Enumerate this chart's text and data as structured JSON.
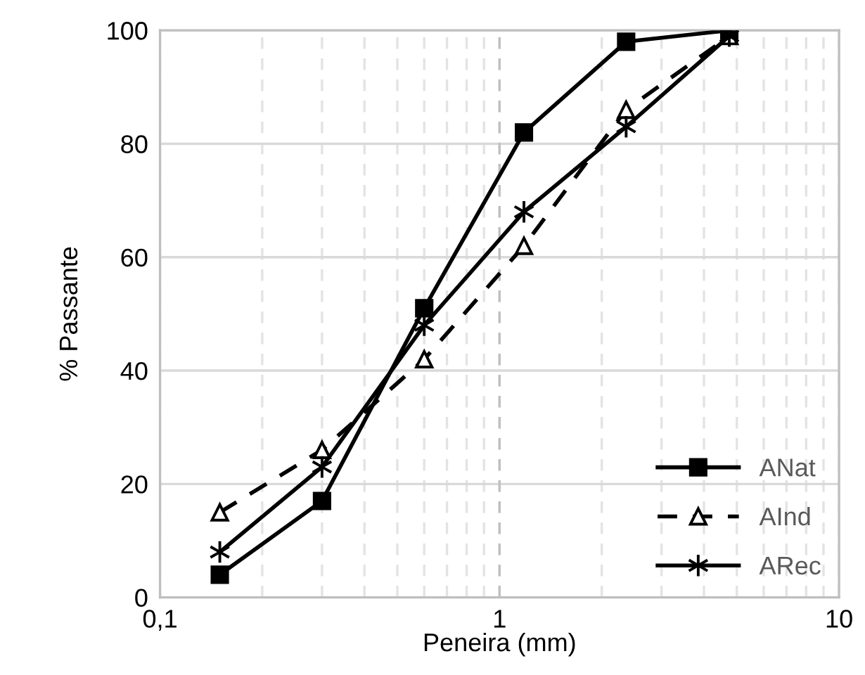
{
  "chart_data": {
    "type": "line",
    "xlabel": "Peneira (mm)",
    "ylabel": "% Passante",
    "log": "x",
    "grid": true,
    "legend": "bottom right",
    "xlim": [
      0.1,
      10
    ],
    "ylim": [
      0,
      100
    ],
    "xticks": [
      {
        "value": 0.1,
        "label": "0,1"
      },
      {
        "value": 0.2,
        "label": null
      },
      {
        "value": 0.3,
        "label": null
      },
      {
        "value": 0.4,
        "label": null
      },
      {
        "value": 0.5,
        "label": null
      },
      {
        "value": 0.6,
        "label": null
      },
      {
        "value": 0.7,
        "label": null
      },
      {
        "value": 0.8,
        "label": null
      },
      {
        "value": 0.9,
        "label": null
      },
      1,
      {
        "value": 2,
        "label": null
      },
      {
        "value": 3,
        "label": null
      },
      {
        "value": 4,
        "label": null
      },
      {
        "value": 5,
        "label": null
      },
      {
        "value": 6,
        "label": null
      },
      {
        "value": 7,
        "label": null
      },
      {
        "value": 8,
        "label": null
      },
      {
        "value": 9,
        "label": null
      },
      10
    ],
    "yticks": [
      0,
      20,
      40,
      60,
      80,
      100
    ],
    "ref_lines": [
      {
        "axis": "x",
        "value": 1,
        "color": "#bfbfbf",
        "line_style": "dashed"
      }
    ],
    "x": [
      0.15,
      0.3,
      0.6,
      1.18,
      2.36,
      4.75
    ],
    "series": [
      {
        "name": "ANat",
        "color": "#000000",
        "marker": "square",
        "line_style": "solid",
        "values": [
          4,
          17,
          51,
          82,
          98,
          100
        ]
      },
      {
        "name": "AInd",
        "color": "#000000",
        "marker": "triangle",
        "line_style": "dashed",
        "values": [
          15,
          26,
          42,
          62,
          86,
          99
        ]
      },
      {
        "name": "ARec",
        "color": "#000000",
        "marker": "cross",
        "line_style": "solid",
        "values": [
          8,
          23,
          48,
          68,
          83,
          99
        ]
      }
    ]
  }
}
